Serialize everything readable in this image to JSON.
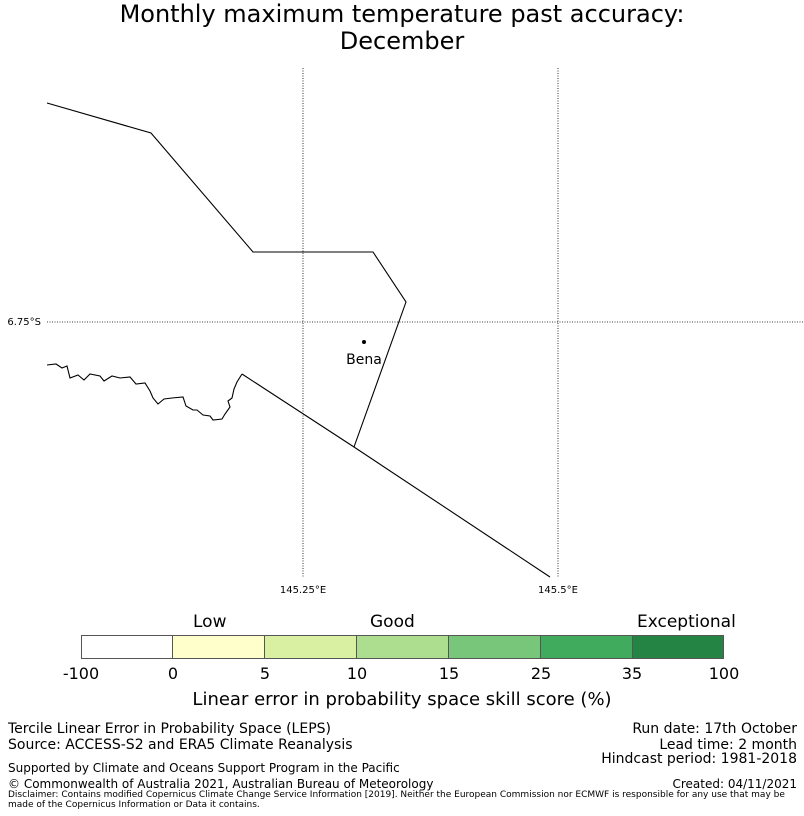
{
  "title": {
    "line1": "Monthly maximum temperature past accuracy:",
    "line2": "December"
  },
  "map": {
    "lat_tick": "6.75°S",
    "lon_ticks": [
      "145.25°E",
      "145.5°E"
    ],
    "place_label": "Bena"
  },
  "colorbar": {
    "categories": [
      "Low",
      "Good",
      "Exceptional"
    ],
    "tick_labels": [
      "-100",
      "0",
      "5",
      "10",
      "15",
      "25",
      "35",
      "100"
    ],
    "colors": [
      "#ffffff",
      "#ffffcc",
      "#d9f0a3",
      "#addd8e",
      "#78c679",
      "#41ab5d",
      "#238443"
    ],
    "title": "Linear error in probability space skill score (%)"
  },
  "info": {
    "method": "Tercile Linear Error in Probability Space (LEPS)",
    "source": "Source: ACCESS-S2 and ERA5 Climate Reanalysis",
    "run_date": "Run date: 17th October",
    "lead_time": "Lead time: 2 month",
    "hindcast": "Hindcast period: 1981-2018",
    "support": "Supported by Climate and Oceans Support Program in the Pacific",
    "copyright": "© Commonwealth of Australia 2021, Australian Bureau of Meteorology",
    "created": "Created: 04/11/2021",
    "disclaimer": "Disclaimer: Contains modified Copernicus Climate Change Service Information [2019]. Neither the European Commission nor ECMWF is responsible for any use that may be made of the Copernicus Information or Data it contains."
  }
}
